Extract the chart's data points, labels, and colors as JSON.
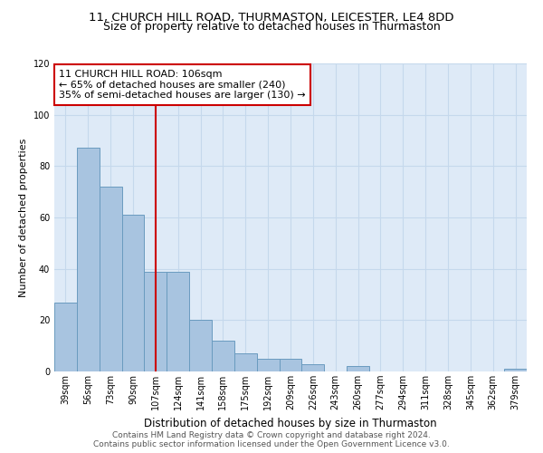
{
  "title1": "11, CHURCH HILL ROAD, THURMASTON, LEICESTER, LE4 8DD",
  "title2": "Size of property relative to detached houses in Thurmaston",
  "xlabel": "Distribution of detached houses by size in Thurmaston",
  "ylabel": "Number of detached properties",
  "categories": [
    "39sqm",
    "56sqm",
    "73sqm",
    "90sqm",
    "107sqm",
    "124sqm",
    "141sqm",
    "158sqm",
    "175sqm",
    "192sqm",
    "209sqm",
    "226sqm",
    "243sqm",
    "260sqm",
    "277sqm",
    "294sqm",
    "311sqm",
    "328sqm",
    "345sqm",
    "362sqm",
    "379sqm"
  ],
  "values": [
    27,
    87,
    72,
    61,
    39,
    39,
    20,
    12,
    7,
    5,
    5,
    3,
    0,
    2,
    0,
    0,
    0,
    0,
    0,
    0,
    1
  ],
  "bar_color": "#a8c4e0",
  "bar_edge_color": "#6a9bbf",
  "vline_x_index": 4,
  "vline_color": "#cc0000",
  "annotation_text": "11 CHURCH HILL ROAD: 106sqm\n← 65% of detached houses are smaller (240)\n35% of semi-detached houses are larger (130) →",
  "annotation_box_color": "#ffffff",
  "annotation_box_edge_color": "#cc0000",
  "ylim": [
    0,
    120
  ],
  "yticks": [
    0,
    20,
    40,
    60,
    80,
    100,
    120
  ],
  "grid_color": "#c5d8ec",
  "background_color": "#deeaf7",
  "footer1": "Contains HM Land Registry data © Crown copyright and database right 2024.",
  "footer2": "Contains public sector information licensed under the Open Government Licence v3.0.",
  "title_fontsize": 9.5,
  "subtitle_fontsize": 9,
  "annotation_fontsize": 8,
  "tick_fontsize": 7,
  "xlabel_fontsize": 8.5,
  "ylabel_fontsize": 8,
  "footer_fontsize": 6.5
}
